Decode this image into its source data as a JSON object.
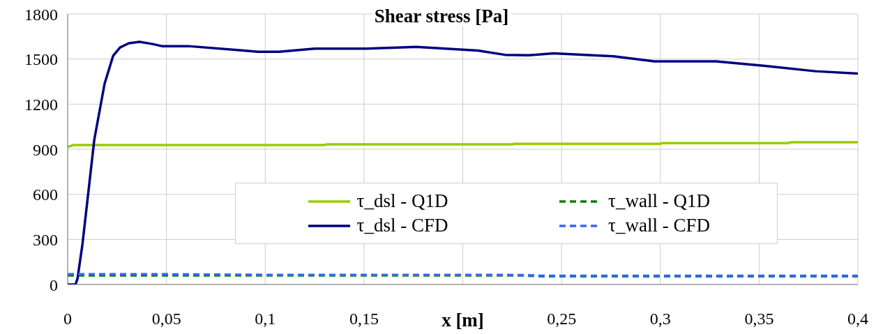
{
  "chart_data": {
    "type": "line",
    "title": "Shear stress [Pa]",
    "xlabel": "x [m]",
    "xlim": [
      0,
      0.4
    ],
    "xticks": [
      {
        "value": 0,
        "label": "0"
      },
      {
        "value": 0.05,
        "label": "0,05"
      },
      {
        "value": 0.1,
        "label": "0,1"
      },
      {
        "value": 0.15,
        "label": "0,15"
      },
      {
        "value": 0.2,
        "label": null
      },
      {
        "value": 0.25,
        "label": "0,25"
      },
      {
        "value": 0.3,
        "label": "0,3"
      },
      {
        "value": 0.35,
        "label": "0,35"
      },
      {
        "value": 0.4,
        "label": "0,4"
      }
    ],
    "ylim": [
      0,
      1800
    ],
    "yticks": [
      0,
      300,
      600,
      900,
      1200,
      1500,
      1800
    ],
    "grid": true,
    "legend": "bottom",
    "marker": "none",
    "series": [
      {
        "name": "τ_dsl - Q1D",
        "color": "#99cc00",
        "line_style": "solid",
        "x": [
          0,
          0.003,
          0.13,
          0.131,
          0.225,
          0.226,
          0.3,
          0.301,
          0.365,
          0.366,
          0.4
        ],
        "values": [
          915,
          928,
          928,
          932,
          932,
          936,
          936,
          941,
          941,
          946,
          946
        ]
      },
      {
        "name": "τ_wall - Q1D",
        "color": "#008000",
        "line_style": "dashed",
        "x": [
          0,
          0.1,
          0.23,
          0.24,
          0.4
        ],
        "values": [
          60,
          60,
          60,
          55,
          55
        ]
      },
      {
        "name": "τ_dsl - CFD",
        "color": "#000080",
        "line_style": "solid",
        "x": [
          0,
          0.004,
          0.005,
          0.0075,
          0.0135,
          0.0187,
          0.023,
          0.0265,
          0.031,
          0.0364,
          0.043,
          0.0477,
          0.061,
          0.086,
          0.0964,
          0.107,
          0.125,
          0.151,
          0.1765,
          0.2076,
          0.2214,
          0.2334,
          0.246,
          0.2764,
          0.297,
          0.3283,
          0.353,
          0.3785,
          0.4
        ],
        "values": [
          0,
          0,
          40,
          269,
          965,
          1336,
          1521,
          1577,
          1605,
          1614,
          1600,
          1586,
          1586,
          1560,
          1548,
          1548,
          1569,
          1569,
          1581,
          1556,
          1528,
          1525,
          1538,
          1518,
          1485,
          1485,
          1454,
          1419,
          1403
        ]
      },
      {
        "name": "τ_wall - CFD",
        "color": "#3366ff",
        "line_style": "dashed",
        "x": [
          0,
          0.05,
          0.1,
          0.2,
          0.23,
          0.24,
          0.4
        ],
        "values": [
          68,
          68,
          64,
          64,
          63,
          58,
          58
        ]
      }
    ]
  }
}
